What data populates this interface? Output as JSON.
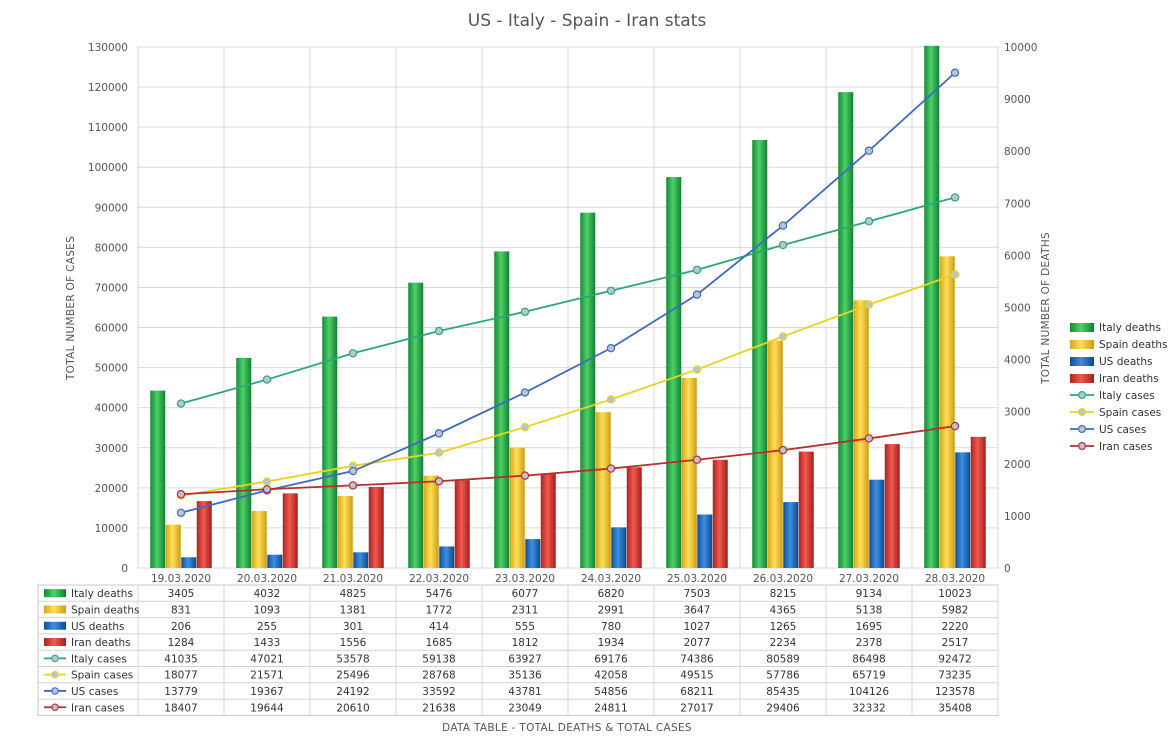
{
  "chart_data": {
    "type": "bar",
    "title": "US - Italy - Spain - Iran stats",
    "categories": [
      "19.03.2020",
      "20.03.2020",
      "21.03.2020",
      "22.03.2020",
      "23.03.2020",
      "24.03.2020",
      "25.03.2020",
      "26.03.2020",
      "27.03.2020",
      "28.03.2020"
    ],
    "y_left": {
      "label": "TOTAL NUMBER OF CASES",
      "min": 0,
      "max": 130000,
      "step": 10000
    },
    "y_right": {
      "label": "TOTAL NUMBER OF DEATHS",
      "min": 0,
      "max": 10000,
      "step": 1000
    },
    "table_title": "DATA TABLE - TOTAL DEATHS & TOTAL CASES",
    "grid": true,
    "legend_position": "right",
    "series": [
      {
        "name": "Italy deaths",
        "kind": "bar",
        "axis": "right",
        "color": "#2db84d",
        "values": [
          3405,
          4032,
          4825,
          5476,
          6077,
          6820,
          7503,
          8215,
          9134,
          10023
        ]
      },
      {
        "name": "Spain deaths",
        "kind": "bar",
        "axis": "right",
        "color": "#f3c431",
        "values": [
          831,
          1093,
          1381,
          1772,
          2311,
          2991,
          3647,
          4365,
          5138,
          5982
        ]
      },
      {
        "name": "US deaths",
        "kind": "bar",
        "axis": "right",
        "color": "#1e6fc4",
        "values": [
          206,
          255,
          301,
          414,
          555,
          780,
          1027,
          1265,
          1695,
          2220
        ]
      },
      {
        "name": "Iran deaths",
        "kind": "bar",
        "axis": "right",
        "color": "#d93a35",
        "values": [
          1284,
          1433,
          1556,
          1685,
          1812,
          1934,
          2077,
          2234,
          2378,
          2517
        ]
      },
      {
        "name": "Italy cases",
        "kind": "line",
        "axis": "left",
        "color": "#2aa87a",
        "values": [
          41035,
          47021,
          53578,
          59138,
          63927,
          69176,
          74386,
          80589,
          86498,
          92472
        ]
      },
      {
        "name": "Spain cases",
        "kind": "line",
        "axis": "left",
        "color": "#e8d21e",
        "values": [
          18077,
          21571,
          25496,
          28768,
          35136,
          42058,
          49515,
          57786,
          65719,
          73235
        ]
      },
      {
        "name": "US cases",
        "kind": "line",
        "axis": "left",
        "color": "#3f6bbf",
        "values": [
          13779,
          19367,
          24192,
          33592,
          43781,
          54856,
          68211,
          85435,
          104126,
          123578
        ]
      },
      {
        "name": "Iran cases",
        "kind": "line",
        "axis": "left",
        "color": "#b5302c",
        "values": [
          18407,
          19644,
          20610,
          21638,
          23049,
          24811,
          27017,
          29406,
          32332,
          35408
        ]
      }
    ]
  }
}
